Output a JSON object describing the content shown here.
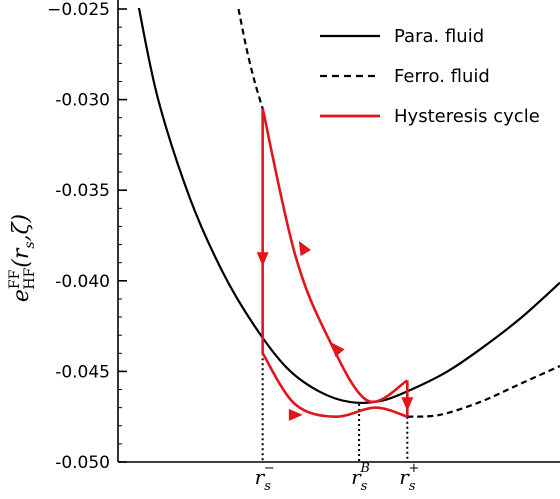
{
  "chart_data": {
    "type": "line",
    "title": "",
    "xlabel": "",
    "ylabel": {
      "base": "e",
      "sup": "FF",
      "sub": "HF",
      "args": "(r",
      "args_sub": "s",
      "args_rest": ",ζ)"
    },
    "ylim": [
      -0.05,
      -0.025
    ],
    "yticks": [
      -0.025,
      -0.03,
      -0.035,
      -0.04,
      -0.045,
      -0.05
    ],
    "ytick_labels": [
      "−0.025",
      "-0.030",
      "-0.035",
      "-0.040",
      "-0.045",
      "-0.050"
    ],
    "xtick_labels": [
      {
        "base": "r",
        "sub": "s",
        "sup": "−"
      },
      {
        "base": "r",
        "sub": "s",
        "sup": "B"
      },
      {
        "base": "r",
        "sub": "s",
        "sup": "+"
      }
    ],
    "legend_position": "top-right",
    "series": [
      {
        "name": "Para. fluid",
        "style": "solid",
        "color": "#000000",
        "points": [
          [
            0.05,
            -0.0247
          ],
          [
            0.1,
            -0.03
          ],
          [
            0.18,
            -0.0355
          ],
          [
            0.26,
            -0.0395
          ],
          [
            0.34,
            -0.0425
          ],
          [
            0.42,
            -0.0448
          ],
          [
            0.5,
            -0.0461
          ],
          [
            0.58,
            -0.0467
          ],
          [
            0.66,
            -0.0466
          ],
          [
            0.74,
            -0.0459
          ],
          [
            0.82,
            -0.045
          ],
          [
            0.9,
            -0.0438
          ],
          [
            1.0,
            -0.0421
          ],
          [
            1.1,
            -0.0401
          ]
        ]
      },
      {
        "name": "Ferro. fluid",
        "style": "dashed",
        "color": "#000000",
        "points": [
          [
            0.3,
            -0.025
          ],
          [
            0.32,
            -0.0272
          ],
          [
            0.34,
            -0.029
          ],
          [
            0.36,
            -0.0305
          ]
        ]
      },
      {
        "name": "",
        "style": "dashed",
        "color": "#000000",
        "points": [
          [
            0.72,
            -0.0475
          ],
          [
            0.8,
            -0.0474
          ],
          [
            0.9,
            -0.0467
          ],
          [
            1.0,
            -0.0457
          ],
          [
            1.1,
            -0.0447
          ]
        ]
      },
      {
        "name": "Hysteresis cycle",
        "style": "solid",
        "color": "#e0161b",
        "points": [
          [
            0.36,
            -0.0305
          ],
          [
            0.36,
            -0.044
          ],
          [
            0.44,
            -0.0468
          ],
          [
            0.54,
            -0.0475
          ],
          [
            0.64,
            -0.047
          ],
          [
            0.72,
            -0.0475
          ],
          [
            0.72,
            -0.0455
          ],
          [
            0.62,
            -0.0466
          ],
          [
            0.52,
            -0.043
          ],
          [
            0.44,
            -0.0385
          ],
          [
            0.36,
            -0.0305
          ]
        ]
      }
    ],
    "markers": [
      {
        "label": "r_s^-",
        "x": 0.36
      },
      {
        "label": "r_s^B",
        "x": 0.6
      },
      {
        "label": "r_s^+",
        "x": 0.72
      }
    ]
  },
  "legend": [
    {
      "label": "Para. fluid",
      "style": "solid",
      "color": "#000000"
    },
    {
      "label": "Ferro. fluid",
      "style": "dashed",
      "color": "#000000"
    },
    {
      "label": "Hysteresis cycle",
      "style": "solid",
      "color": "#e0161b"
    }
  ]
}
